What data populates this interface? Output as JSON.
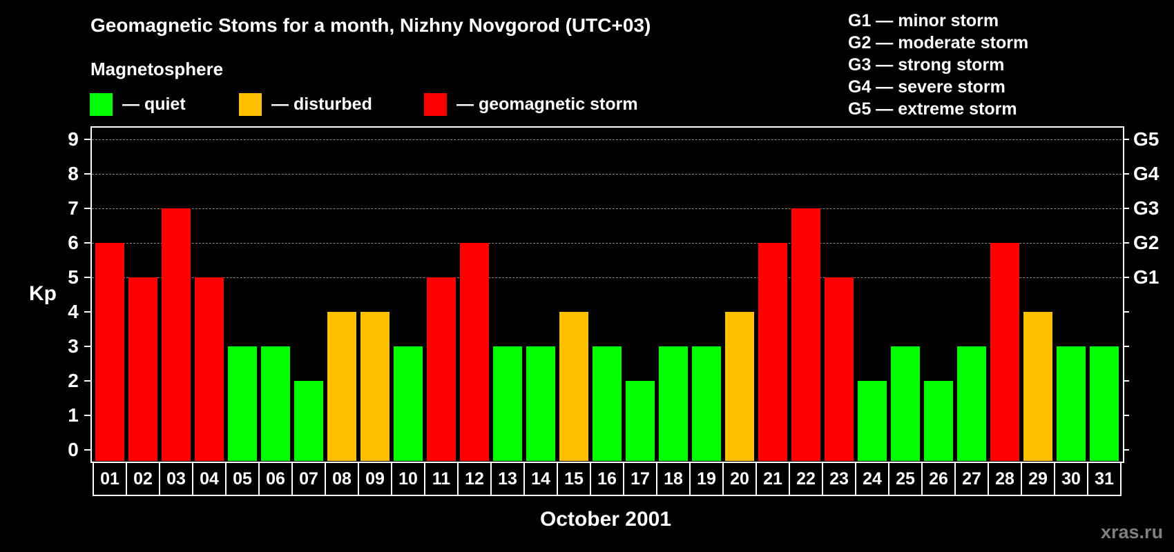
{
  "title": "Geomagnetic Stoms for a month, Nizhny Novgorod (UTC+03)",
  "legend": {
    "heading": "Magnetosphere",
    "items": [
      {
        "label": "— quiet",
        "color": "#00ff00"
      },
      {
        "label": "— disturbed",
        "color": "#ffc000"
      },
      {
        "label": "— geomagnetic storm",
        "color": "#ff0000"
      }
    ]
  },
  "storm_scale": [
    "G1 — minor storm",
    "G2 — moderate storm",
    "G3 — strong storm",
    "G4 — severe storm",
    "G5 — extreme storm"
  ],
  "watermark": "xras.ru",
  "colors": {
    "quiet": "#00ff00",
    "disturbed": "#ffc000",
    "storm": "#ff0000",
    "background": "#000000",
    "grid": "#8c8c8c"
  },
  "chart_data": {
    "type": "bar",
    "title": "Geomagnetic Stoms for a month, Nizhny Novgorod (UTC+03)",
    "xlabel": "October 2001",
    "ylabel": "Kp",
    "ylim": [
      0,
      9
    ],
    "yticks": [
      "0",
      "1",
      "2",
      "3",
      "4",
      "5",
      "6",
      "7",
      "8",
      "9"
    ],
    "right_axis_labels": [
      {
        "kp": 5,
        "label": "G1"
      },
      {
        "kp": 6,
        "label": "G2"
      },
      {
        "kp": 7,
        "label": "G3"
      },
      {
        "kp": 8,
        "label": "G4"
      },
      {
        "kp": 9,
        "label": "G5"
      }
    ],
    "grid": "dashed horizontal at Kp 5–9",
    "categories": [
      "01",
      "02",
      "03",
      "04",
      "05",
      "06",
      "07",
      "08",
      "09",
      "10",
      "11",
      "12",
      "13",
      "14",
      "15",
      "16",
      "17",
      "18",
      "19",
      "20",
      "21",
      "22",
      "23",
      "24",
      "25",
      "26",
      "27",
      "28",
      "29",
      "30",
      "31"
    ],
    "values": [
      6,
      5,
      7,
      5,
      3,
      3,
      2,
      4,
      4,
      3,
      5,
      6,
      3,
      3,
      4,
      3,
      2,
      3,
      3,
      4,
      6,
      7,
      5,
      2,
      3,
      2,
      3,
      6,
      4,
      3,
      3
    ],
    "status": [
      "storm",
      "storm",
      "storm",
      "storm",
      "quiet",
      "quiet",
      "quiet",
      "disturbed",
      "disturbed",
      "quiet",
      "storm",
      "storm",
      "quiet",
      "quiet",
      "disturbed",
      "quiet",
      "quiet",
      "quiet",
      "quiet",
      "disturbed",
      "storm",
      "storm",
      "storm",
      "quiet",
      "quiet",
      "quiet",
      "quiet",
      "storm",
      "disturbed",
      "quiet",
      "quiet"
    ],
    "legend_position": "top"
  }
}
